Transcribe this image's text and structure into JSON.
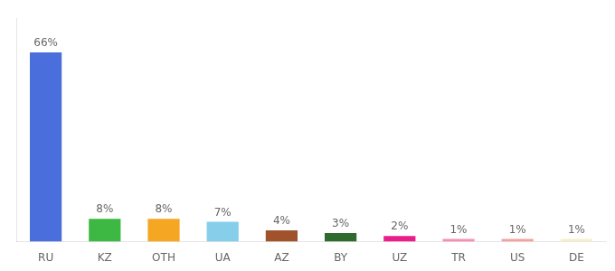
{
  "chart_data": {
    "type": "bar",
    "categories": [
      "RU",
      "KZ",
      "OTH",
      "UA",
      "AZ",
      "BY",
      "UZ",
      "TR",
      "US",
      "DE"
    ],
    "values": [
      66,
      8,
      8,
      7,
      4,
      3,
      2,
      1,
      1,
      1
    ],
    "value_labels": [
      "66%",
      "8%",
      "8%",
      "7%",
      "4%",
      "3%",
      "2%",
      "1%",
      "1%",
      "1%"
    ],
    "colors": [
      "#4a6fdc",
      "#3cb843",
      "#f5a623",
      "#87ceeb",
      "#a0522d",
      "#2d6a2d",
      "#e91e8c",
      "#f48fb1",
      "#f4a0a0",
      "#f5f0c8"
    ],
    "ylim": [
      0,
      78
    ],
    "data_labels": true,
    "tick_labels": "x",
    "grid": false
  }
}
